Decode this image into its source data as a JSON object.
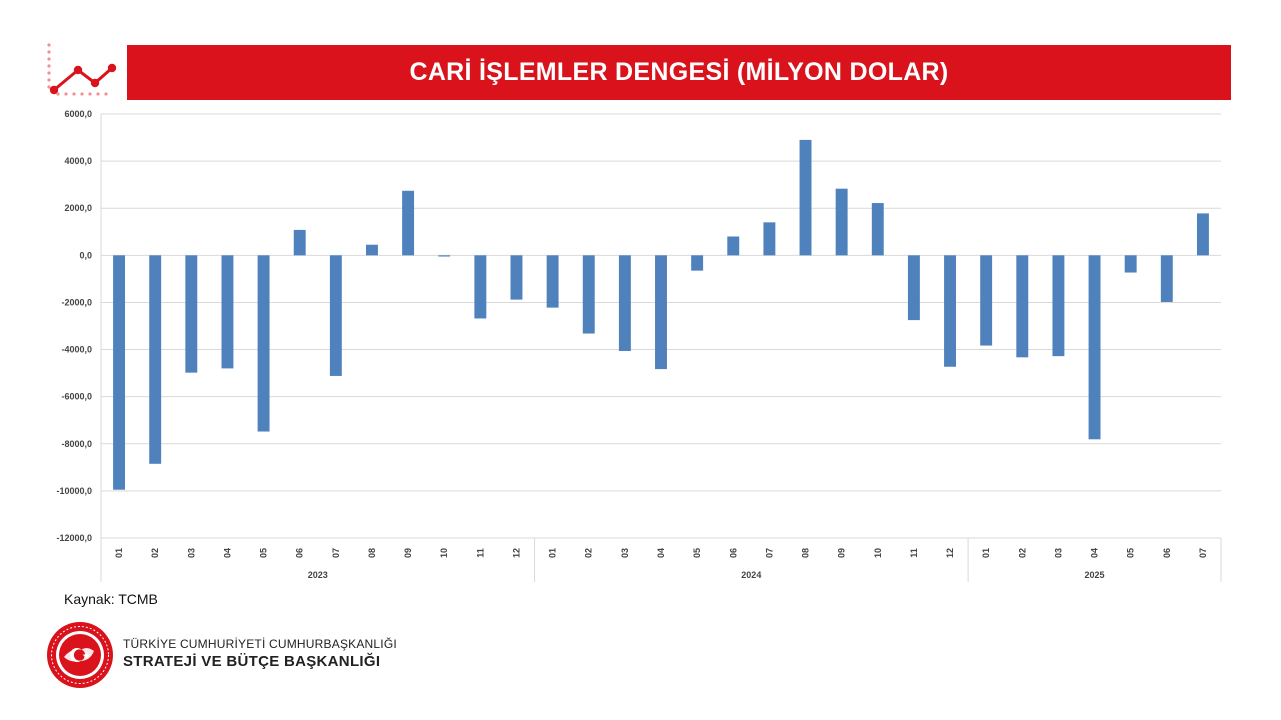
{
  "header": {
    "title": "CARİ İŞLEMLER DENGESİ (MİLYON DOLAR)"
  },
  "colors": {
    "accent": "#d9121b",
    "bar": "#4f81bd",
    "grid": "#d9d9d9"
  },
  "chart_data": {
    "type": "bar",
    "title": "CARİ İŞLEMLER DENGESİ (MİLYON DOLAR)",
    "xlabel": "",
    "ylabel": "",
    "ylim": [
      -12000,
      6000
    ],
    "y_ticks": [
      "6000,0",
      "4000,0",
      "2000,0",
      "0,0",
      "-2000,0",
      "-4000,0",
      "-6000,0",
      "-8000,0",
      "-10000,0",
      "-12000,0"
    ],
    "grid": true,
    "legend": "none",
    "groups": [
      {
        "year": "2023",
        "months": [
          "01",
          "02",
          "03",
          "04",
          "05",
          "06",
          "07",
          "08",
          "09",
          "10",
          "11",
          "12"
        ],
        "values": [
          -9950,
          -8850,
          -4980,
          -4800,
          -7480,
          1080,
          -5120,
          450,
          2740,
          -50,
          -2680,
          -1880
        ]
      },
      {
        "year": "2024",
        "months": [
          "01",
          "02",
          "03",
          "04",
          "05",
          "06",
          "07",
          "08",
          "09",
          "10",
          "11",
          "12"
        ],
        "values": [
          -2220,
          -3320,
          -4060,
          -4830,
          -650,
          800,
          1400,
          4900,
          2830,
          2220,
          -2750,
          -4730
        ]
      },
      {
        "year": "2025",
        "months": [
          "01",
          "02",
          "03",
          "04",
          "05",
          "06",
          "07"
        ],
        "values": [
          -3830,
          -4330,
          -4280,
          -7810,
          -730,
          -1980,
          1780
        ]
      }
    ]
  },
  "source": {
    "text": "Kaynak: TCMB"
  },
  "org": {
    "line1": "TÜRKİYE CUMHURİYETİ CUMHURBAŞKANLIĞI",
    "line2": "STRATEJİ VE BÜTÇE BAŞKANLIĞI"
  },
  "icons": {
    "header_icon": "line-chart-icon",
    "org_logo": "presidency-emblem-icon"
  }
}
